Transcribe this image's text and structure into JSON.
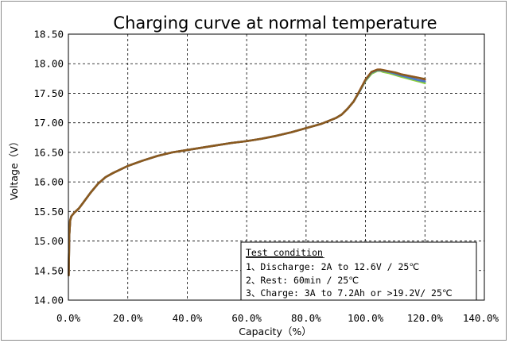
{
  "chart_data": {
    "type": "line",
    "title": "Charging curve at normal temperature",
    "xlabel": "Capacity（%）",
    "ylabel": "Voltage（V）",
    "xlim": [
      0.0,
      140.0
    ],
    "ylim": [
      14.0,
      18.5
    ],
    "xticks": [
      0,
      20,
      40,
      60,
      80,
      100,
      120,
      140
    ],
    "x_tick_labels": [
      "0.0%",
      "20.0%",
      "40.0%",
      "60.0%",
      "80.0%",
      "100.0%",
      "120.0%",
      "140.0%"
    ],
    "yticks": [
      14.0,
      14.5,
      15.0,
      15.5,
      16.0,
      16.5,
      17.0,
      17.5,
      18.0,
      18.5
    ],
    "y_tick_labels": [
      "14.00",
      "14.50",
      "15.00",
      "15.50",
      "16.00",
      "16.50",
      "17.00",
      "17.50",
      "18.00",
      "18.50"
    ],
    "grid": true,
    "series": [
      {
        "name": "green",
        "color": "#8ccf3c",
        "x": [
          0.1,
          0.3,
          0.6,
          1.0,
          2.0,
          3.5,
          5.0,
          7.5,
          10.0,
          12.5,
          15.0,
          20.0,
          25.0,
          30.0,
          35.0,
          40.0,
          45.0,
          50.0,
          55.0,
          60.0,
          65.0,
          70.0,
          75.0,
          80.0,
          85.0,
          88.0,
          90.0,
          92.0,
          94.0,
          96.0,
          98.0,
          100.0,
          102.0,
          104.0,
          105.0,
          106.0,
          108.0,
          110.0,
          112.0,
          115.0,
          118.0,
          120.0
        ],
        "values": [
          14.42,
          15.1,
          15.35,
          15.42,
          15.48,
          15.55,
          15.65,
          15.82,
          15.97,
          16.08,
          16.15,
          16.27,
          16.36,
          16.44,
          16.5,
          16.54,
          16.58,
          16.62,
          16.66,
          16.69,
          16.73,
          16.78,
          16.84,
          16.91,
          16.98,
          17.04,
          17.08,
          17.14,
          17.24,
          17.36,
          17.53,
          17.71,
          17.83,
          17.88,
          17.88,
          17.86,
          17.84,
          17.81,
          17.78,
          17.74,
          17.7,
          17.67
        ]
      },
      {
        "name": "red",
        "color": "#e0473c",
        "x": [
          0.1,
          0.3,
          0.6,
          1.0,
          2.0,
          3.5,
          5.0,
          7.5,
          10.0,
          12.5,
          15.0,
          20.0,
          25.0,
          30.0,
          35.0,
          40.0,
          45.0,
          50.0,
          55.0,
          60.0,
          65.0,
          70.0,
          75.0,
          80.0,
          85.0,
          88.0,
          90.0,
          92.0,
          94.0,
          96.0,
          98.0,
          100.0,
          102.0,
          104.0,
          105.0,
          106.0,
          108.0,
          110.0,
          112.0,
          115.0,
          118.0,
          120.0
        ],
        "values": [
          14.42,
          15.1,
          15.35,
          15.42,
          15.48,
          15.55,
          15.65,
          15.82,
          15.97,
          16.08,
          16.15,
          16.27,
          16.36,
          16.44,
          16.5,
          16.54,
          16.58,
          16.62,
          16.66,
          16.69,
          16.73,
          16.78,
          16.84,
          16.91,
          16.98,
          17.04,
          17.08,
          17.14,
          17.24,
          17.36,
          17.54,
          17.73,
          17.86,
          17.9,
          17.9,
          17.89,
          17.87,
          17.85,
          17.82,
          17.79,
          17.76,
          17.73
        ]
      },
      {
        "name": "blue",
        "color": "#4a78c8",
        "x": [
          0.1,
          0.3,
          0.6,
          1.0,
          2.0,
          3.5,
          5.0,
          7.5,
          10.0,
          12.5,
          15.0,
          20.0,
          25.0,
          30.0,
          35.0,
          40.0,
          45.0,
          50.0,
          55.0,
          60.0,
          65.0,
          70.0,
          75.0,
          80.0,
          85.0,
          88.0,
          90.0,
          92.0,
          94.0,
          96.0,
          98.0,
          100.0,
          102.0,
          104.0,
          105.0,
          106.0,
          108.0,
          110.0,
          112.0,
          115.0,
          118.0,
          120.0
        ],
        "values": [
          14.42,
          15.1,
          15.35,
          15.42,
          15.48,
          15.55,
          15.65,
          15.82,
          15.97,
          16.08,
          16.15,
          16.27,
          16.36,
          16.44,
          16.5,
          16.54,
          16.58,
          16.62,
          16.66,
          16.69,
          16.73,
          16.78,
          16.84,
          16.91,
          16.98,
          17.04,
          17.08,
          17.14,
          17.24,
          17.36,
          17.53,
          17.72,
          17.85,
          17.89,
          17.89,
          17.88,
          17.86,
          17.83,
          17.8,
          17.76,
          17.72,
          17.7
        ]
      },
      {
        "name": "brown",
        "color": "#8a5a1e",
        "x": [
          0.1,
          0.3,
          0.6,
          1.0,
          2.0,
          3.5,
          5.0,
          7.5,
          10.0,
          12.5,
          15.0,
          20.0,
          25.0,
          30.0,
          35.0,
          40.0,
          45.0,
          50.0,
          55.0,
          60.0,
          65.0,
          70.0,
          75.0,
          80.0,
          85.0,
          88.0,
          90.0,
          92.0,
          94.0,
          96.0,
          98.0,
          100.0,
          102.0,
          104.0,
          105.0,
          106.0,
          108.0,
          110.0,
          112.0,
          115.0,
          118.0,
          120.0
        ],
        "values": [
          14.42,
          15.1,
          15.35,
          15.42,
          15.48,
          15.55,
          15.65,
          15.82,
          15.97,
          16.08,
          16.15,
          16.27,
          16.36,
          16.44,
          16.5,
          16.54,
          16.58,
          16.62,
          16.66,
          16.69,
          16.73,
          16.78,
          16.84,
          16.91,
          16.98,
          17.04,
          17.08,
          17.14,
          17.24,
          17.36,
          17.54,
          17.73,
          17.86,
          17.9,
          17.9,
          17.89,
          17.87,
          17.85,
          17.82,
          17.79,
          17.76,
          17.74
        ]
      }
    ],
    "annotation": {
      "heading": "Test condition",
      "lines": [
        "1、Discharge: 2A to 12.6V / 25℃",
        "2、Rest: 60min / 25℃",
        "3、Charge: 3A  to 7.2Ah or >19.2V/ 25℃"
      ],
      "placement": "bottom-right"
    }
  }
}
